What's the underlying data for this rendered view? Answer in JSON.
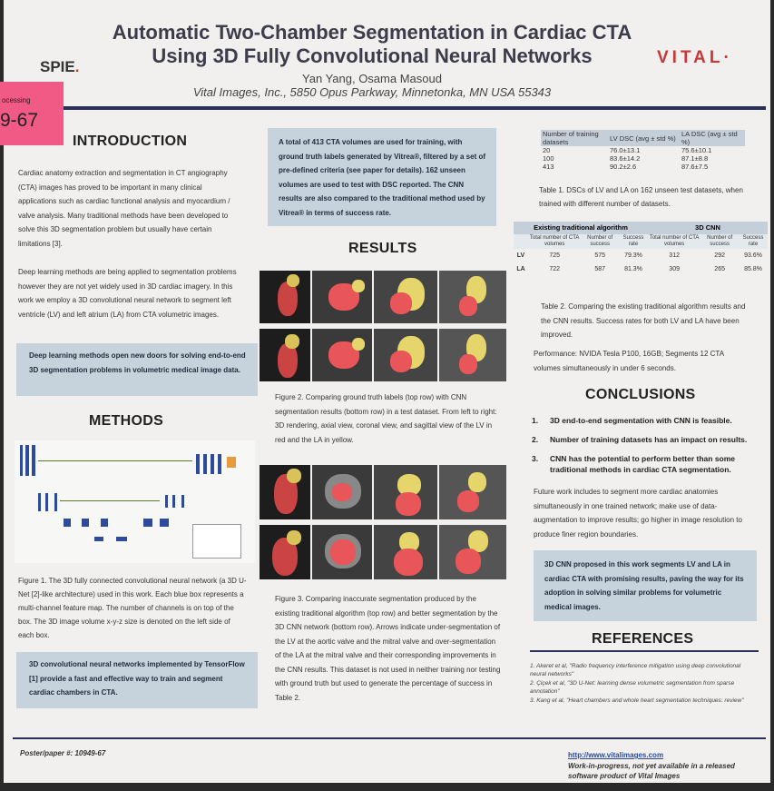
{
  "header": {
    "title_line1": "Automatic Two-Chamber Segmentation in Cardiac CTA",
    "title_line2": "Using 3D Fully Convolutional Neural Networks",
    "authors": "Yan Yang, Osama Masoud",
    "affiliation": "Vital Images, Inc., 5850 Opus Parkway, Minnetonka, MN USA 55343",
    "spie_logo": "SPIE",
    "spie_dot": ".",
    "vital_logo": "VITAL",
    "vital_mark": "·"
  },
  "sticky": {
    "top": "ocessing",
    "number": "9-67"
  },
  "introduction": {
    "heading": "INTRODUCTION",
    "para1": "Cardiac anatomy extraction and segmentation in CT angiography (CTA) images has proved to be important in many clinical applications such as cardiac functional analysis and myocardium / valve analysis. Many traditional methods have been developed to solve this 3D segmentation problem but usually have certain limitations [3].",
    "para2": "Deep learning methods are being applied to segmentation problems however they are not yet widely used in 3D cardiac imagery. In this work we employ a 3D convolutional neural network to segment left ventricle (LV) and left atrium (LA) from CTA volumetric images.",
    "highlight": "Deep learning methods open new doors for solving end-to-end 3D segmentation problems in volumetric medical image data."
  },
  "methods": {
    "heading": "METHODS",
    "figure_caption": "Figure 1. The 3D fully connected convolutional neural network (a 3D U-Net [2]-like architecture) used in this work. Each blue box represents a multi-channel feature map. The number of channels is on top of the box. The 3D image volume x-y-z size is denoted on the left side of each box.",
    "highlight": "3D convolutional neural networks implemented by TensorFlow [1] provide a fast and effective way to train and segment cardiac chambers in CTA."
  },
  "middle": {
    "intro_box": "A total of 413 CTA volumes are used for training, with ground truth labels generated by Vitrea®, filtered by a set of pre-defined criteria (see paper for details). 162 unseen volumes are used to test with DSC reported. The CNN results are also compared to the traditional method used by Vitrea® in terms of success rate.",
    "results_heading": "RESULTS",
    "fig2_caption": "Figure 2. Comparing ground truth labels (top row) with CNN segmentation results (bottom row) in a test dataset. From left to right: 3D rendering, axial view, coronal view, and sagittal view of the LV in red and the LA in yellow.",
    "fig3_caption": "Figure 3. Comparing inaccurate segmentation produced by the existing traditional algorithm (top row) and better segmentation by the 3D CNN network (bottom row). Arrows indicate under-segmentation of the LV at the aortic valve and the mitral valve and over-segmentation of the LA at the mitral valve and their corresponding improvements in the CNN results. This dataset is not used in neither training nor testing with ground truth but used to generate the percentage of success in Table 2."
  },
  "table1": {
    "headers": [
      "Number of training datasets",
      "LV DSC (avg ± std %)",
      "LA DSC (avg ± std %)"
    ],
    "rows": [
      [
        "20",
        "76.0±13.1",
        "75.6±10.1"
      ],
      [
        "100",
        "83.6±14.2",
        "87.1±8.8"
      ],
      [
        "413",
        "90.2±2.6",
        "87.6±7.5"
      ]
    ],
    "caption": "Table 1. DSCs of LV and LA on 162 unseen test datasets, when trained with different number of datasets."
  },
  "table2": {
    "group1": "Existing traditional algorithm",
    "group2": "3D CNN",
    "subheaders": [
      "Total number of CTA volumes",
      "Number of success",
      "Success rate",
      "Total number of CTA volumes",
      "Number of success",
      "Success rate"
    ],
    "rows": [
      {
        "label": "LV",
        "values": [
          "725",
          "575",
          "79.3%",
          "312",
          "292",
          "93.6%"
        ]
      },
      {
        "label": "LA",
        "values": [
          "722",
          "587",
          "81.3%",
          "309",
          "265",
          "85.8%"
        ]
      }
    ],
    "caption": "Table 2. Comparing the existing traditional algorithm results and the CNN results. Success rates for both LV and LA have been improved.",
    "performance": "Performance: NVIDA Tesla P100, 16GB; Segments 12 CTA volumes simultaneously in under 6 seconds."
  },
  "conclusions": {
    "heading": "CONCLUSIONS",
    "items": [
      {
        "num": "1.",
        "text": "3D end-to-end segmentation with CNN is feasible."
      },
      {
        "num": "2.",
        "text": "Number of training datasets has an impact on results."
      },
      {
        "num": "3.",
        "text": "CNN has the potential to perform better than some traditional methods in cardiac CTA segmentation."
      }
    ],
    "future": "Future work includes to segment more cardiac anatomies simultaneously in one trained network; make use of data-augmentation to improve results; go higher in image resolution to produce finer region boundaries.",
    "highlight": "3D CNN proposed in this work segments LV and LA in cardiac CTA with promising results, paving the way for its adoption in solving similar problems for volumetric medical images."
  },
  "references": {
    "heading": "REFERENCES",
    "items": [
      "1. Akeret et al, \"Radio frequency interference mitigation using deep convolutional neural networks\"",
      "2. Çiçek et al, \"3D U-Net: learning dense volumetric segmentation from sparse annotation\"",
      "3. Kang et al, \"Heart chambers and whole heart segmentation techniques: review\""
    ]
  },
  "footer": {
    "poster_number": "Poster/paper #: 10949-67",
    "url": "http://www.vitalimages.com",
    "disclaimer_line1": "Work-in-progress, not yet available in a released",
    "disclaimer_line2": "software product of Vital Images"
  },
  "colors": {
    "accent": "#2a2f5a",
    "box": "#c6d2dc",
    "lv": "#e8565a",
    "la": "#e6d56a",
    "sticky": "#f25a86"
  }
}
